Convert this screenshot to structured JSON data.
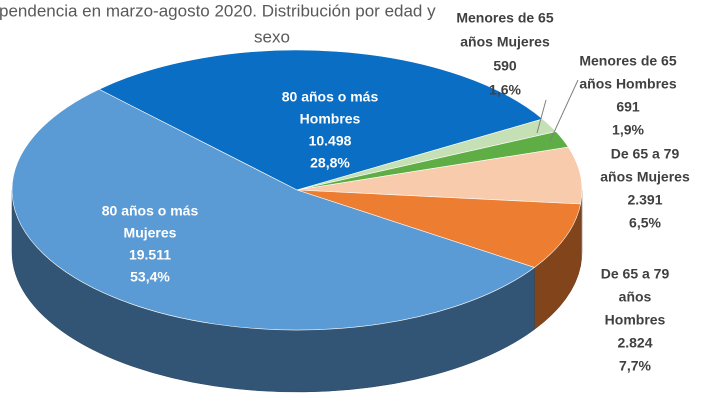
{
  "chart_data": {
    "type": "pie",
    "title": [
      "pendencia en marzo-agosto 2020. Distribución por edad y",
      "sexo"
    ],
    "categories": [
      [
        "80 años o más",
        "Hombres"
      ],
      [
        "Menores de 65",
        "años Mujeres"
      ],
      [
        "Menores de 65",
        "años Hombres"
      ],
      [
        "De 65 a 79",
        "años Mujeres"
      ],
      [
        "De 65 a 79",
        "años",
        "Hombres"
      ],
      [
        "80 años o más",
        "Mujeres"
      ]
    ],
    "values": [
      10498,
      590,
      691,
      2391,
      2824,
      19511
    ],
    "value_labels": [
      "10.498",
      "590",
      "691",
      "2.391",
      "2.824",
      "19.511"
    ],
    "percent": [
      28.8,
      1.6,
      1.9,
      6.5,
      7.7,
      53.4
    ],
    "percent_labels": [
      "28,8%",
      "1,6%",
      "1,9%",
      "6,5%",
      "7,7%",
      "53,4%"
    ],
    "colors": [
      "#0b6ec5",
      "#c5e0b4",
      "#5fae45",
      "#f8cbad",
      "#ed7d31",
      "#5b9bd5"
    ]
  }
}
